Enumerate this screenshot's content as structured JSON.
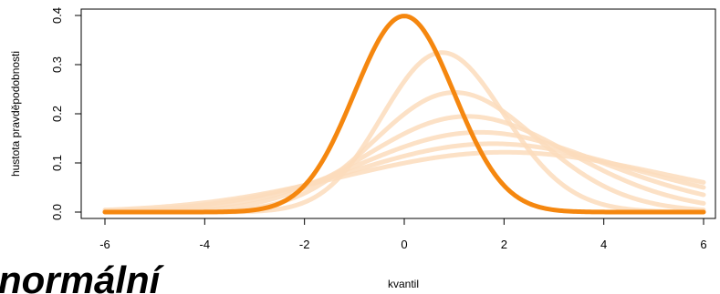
{
  "chart_data": {
    "type": "line",
    "title": "",
    "overlay_text": "normální",
    "xlabel": "kvantil",
    "ylabel": "hustota pravděpodobnosti",
    "xlim": [
      -6,
      6
    ],
    "ylim": [
      0,
      0.4
    ],
    "x_ticks": [
      "-6",
      "-4",
      "-2",
      "0",
      "2",
      "4",
      "6"
    ],
    "y_ticks": [
      "0.0",
      "0.1",
      "0.2",
      "0.3",
      "0.4"
    ],
    "grid": false,
    "legend": "none",
    "highlight_color": "#f5870f",
    "faded_color": "#fcdcbc",
    "series": [
      {
        "distribution": "skew-normal",
        "location": 0,
        "scale": 1.0,
        "shape": 0,
        "highlighted": true
      },
      {
        "distribution": "skew-normal",
        "location": 0,
        "scale": 1.5,
        "shape": 1,
        "highlighted": false
      },
      {
        "distribution": "skew-normal",
        "location": 0,
        "scale": 2.0,
        "shape": 1,
        "highlighted": false
      },
      {
        "distribution": "skew-normal",
        "location": 0,
        "scale": 2.5,
        "shape": 1,
        "highlighted": false
      },
      {
        "distribution": "skew-normal",
        "location": 0,
        "scale": 3.0,
        "shape": 1,
        "highlighted": false
      },
      {
        "distribution": "skew-normal",
        "location": 0,
        "scale": 3.5,
        "shape": 1,
        "highlighted": false
      },
      {
        "distribution": "skew-normal",
        "location": 0,
        "scale": 4.0,
        "shape": 1,
        "highlighted": false
      }
    ]
  }
}
